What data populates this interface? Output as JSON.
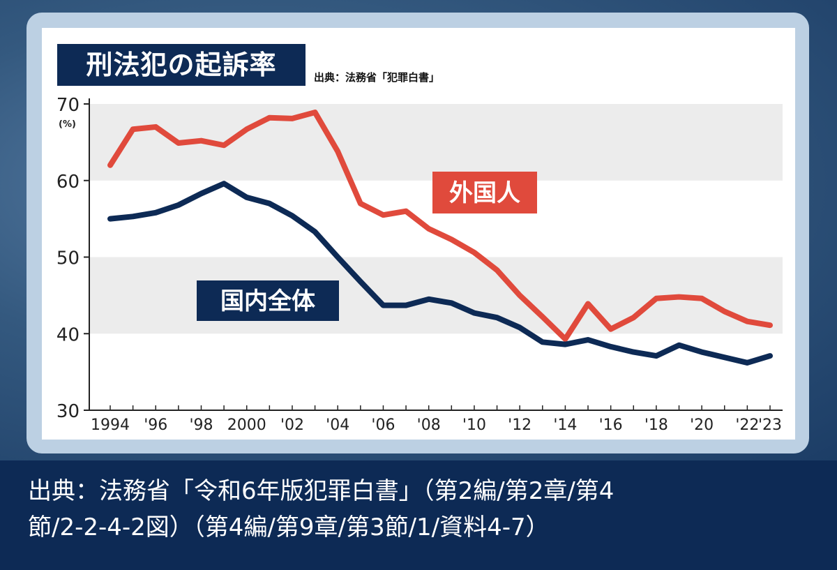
{
  "chart_data": {
    "type": "line",
    "title": "刑法犯の起訴率",
    "source_label": "出典：法務省「犯罪白書」",
    "y_unit": "(%)",
    "ylim": [
      30,
      70
    ],
    "yticks": [
      30,
      40,
      50,
      60,
      70
    ],
    "grid_bands": true,
    "x": [
      1994,
      1995,
      1996,
      1997,
      1998,
      1999,
      2000,
      2001,
      2002,
      2003,
      2004,
      2005,
      2006,
      2007,
      2008,
      2009,
      2010,
      2011,
      2012,
      2013,
      2014,
      2015,
      2016,
      2017,
      2018,
      2019,
      2020,
      2021,
      2022,
      2023
    ],
    "xtick_labels": [
      {
        "x": 1994,
        "label": "1994"
      },
      {
        "x": 1996,
        "label": "'96"
      },
      {
        "x": 1998,
        "label": "'98"
      },
      {
        "x": 2000,
        "label": "2000"
      },
      {
        "x": 2002,
        "label": "'02"
      },
      {
        "x": 2004,
        "label": "'04"
      },
      {
        "x": 2006,
        "label": "'06"
      },
      {
        "x": 2008,
        "label": "'08"
      },
      {
        "x": 2010,
        "label": "'10"
      },
      {
        "x": 2012,
        "label": "'12"
      },
      {
        "x": 2014,
        "label": "'14"
      },
      {
        "x": 2016,
        "label": "'16"
      },
      {
        "x": 2018,
        "label": "'18"
      },
      {
        "x": 2020,
        "label": "'20"
      },
      {
        "x": 2022,
        "label": "'22"
      },
      {
        "x": 2023,
        "label": "'23"
      }
    ],
    "series": [
      {
        "name": "外国人",
        "color": "#e04a3c",
        "values": [
          62.0,
          66.7,
          67.0,
          64.9,
          65.2,
          64.6,
          66.7,
          68.2,
          68.1,
          68.9,
          63.8,
          57.0,
          55.5,
          56.0,
          53.7,
          52.3,
          50.6,
          48.3,
          45.0,
          42.2,
          39.3,
          43.9,
          40.6,
          42.1,
          44.6,
          44.8,
          44.6,
          42.9,
          41.6,
          41.1
        ]
      },
      {
        "name": "国内全体",
        "color": "#0d2a55",
        "values": [
          55.0,
          55.3,
          55.8,
          56.8,
          58.3,
          59.6,
          57.8,
          57.0,
          55.4,
          53.3,
          50.0,
          46.8,
          43.7,
          43.7,
          44.5,
          44.0,
          42.7,
          42.1,
          40.8,
          38.9,
          38.6,
          39.2,
          38.3,
          37.6,
          37.1,
          38.5,
          37.6,
          36.9,
          36.2,
          37.1
        ]
      }
    ]
  },
  "footer": {
    "line1": "出典：法務省「令和6年版犯罪白書」（第2編/第2章/第4",
    "line2": "節/2-2-4-2図）（第4編/第9章/第3節/1/資料4-7）"
  }
}
